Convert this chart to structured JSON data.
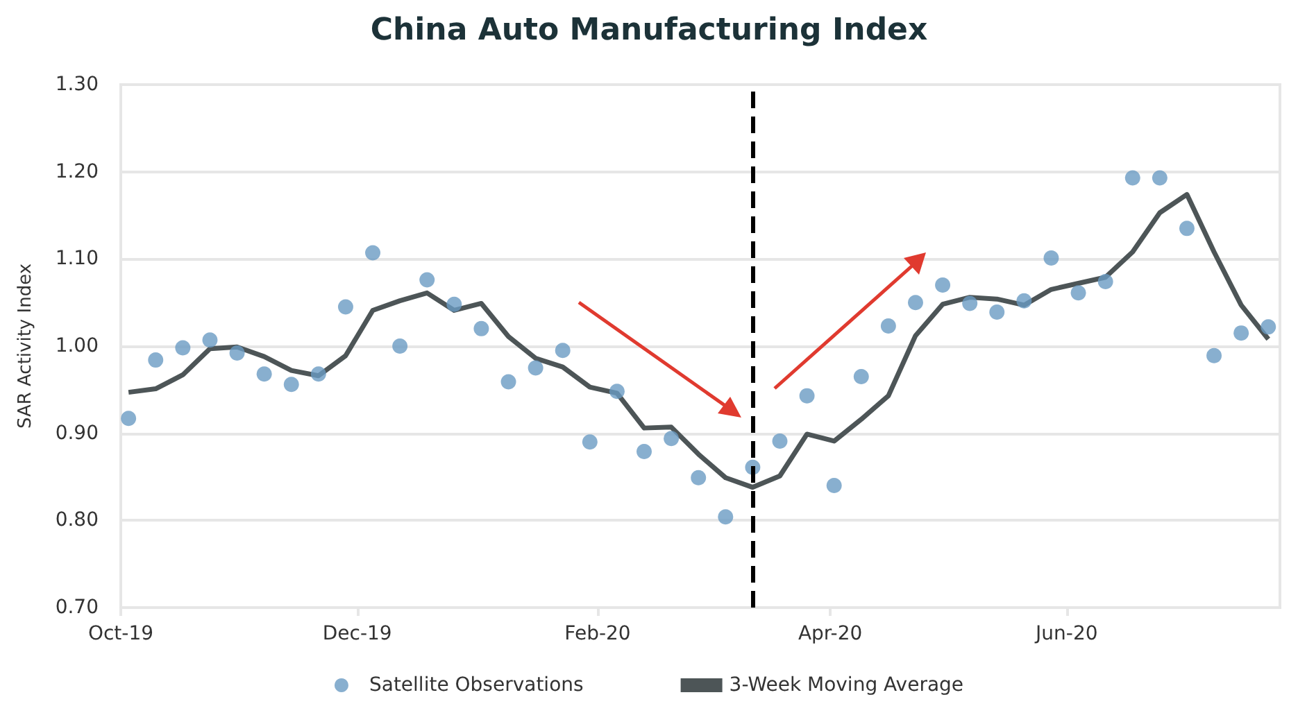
{
  "chart_data": {
    "type": "scatter",
    "title": "China Auto Manufacturing Index",
    "ylabel": "SAR Activity Index",
    "x": [
      "2019-10-03",
      "2019-10-10",
      "2019-10-17",
      "2019-10-24",
      "2019-10-31",
      "2019-11-07",
      "2019-11-14",
      "2019-11-21",
      "2019-11-28",
      "2019-12-05",
      "2019-12-12",
      "2019-12-19",
      "2019-12-26",
      "2020-01-02",
      "2020-01-09",
      "2020-01-16",
      "2020-01-23",
      "2020-01-30",
      "2020-02-06",
      "2020-02-13",
      "2020-02-20",
      "2020-02-27",
      "2020-03-05",
      "2020-03-12",
      "2020-03-19",
      "2020-03-26",
      "2020-04-02",
      "2020-04-09",
      "2020-04-16",
      "2020-04-23",
      "2020-04-30",
      "2020-05-07",
      "2020-05-14",
      "2020-05-21",
      "2020-05-28",
      "2020-06-04",
      "2020-06-11",
      "2020-06-18",
      "2020-06-25",
      "2020-07-02",
      "2020-07-09",
      "2020-07-16",
      "2020-07-23"
    ],
    "series": [
      {
        "name": "Satellite Observations",
        "color": "#6a9bc3",
        "marker": "circle",
        "values": [
          0.917,
          0.984,
          0.998,
          1.007,
          0.992,
          0.968,
          0.956,
          0.968,
          1.045,
          1.107,
          1.0,
          1.076,
          1.048,
          1.02,
          0.959,
          0.975,
          0.995,
          0.89,
          0.948,
          0.879,
          0.894,
          0.849,
          0.804,
          0.861,
          0.891,
          0.943,
          0.84,
          0.965,
          1.023,
          1.05,
          1.07,
          1.049,
          1.039,
          1.052,
          1.101,
          1.061,
          1.074,
          1.193,
          1.193,
          1.135,
          0.989,
          1.015,
          1.022
        ]
      },
      {
        "name": "3-Week Moving Average",
        "type": "line",
        "color": "#4d5557",
        "marker": "none",
        "line_style": "solid",
        "values": [
          0.947,
          0.951,
          0.967,
          0.997,
          0.999,
          0.988,
          0.972,
          0.966,
          0.989,
          1.041,
          1.052,
          1.061,
          1.041,
          1.049,
          1.011,
          0.986,
          0.976,
          0.953,
          0.946,
          0.906,
          0.907,
          0.876,
          0.849,
          0.838,
          0.851,
          0.899,
          0.891,
          0.916,
          0.943,
          1.012,
          1.048,
          1.056,
          1.054,
          1.047,
          1.065,
          1.072,
          1.079,
          1.108,
          1.153,
          1.174,
          1.108,
          1.047,
          1.008
        ]
      }
    ],
    "xlim": [
      "2019-10-01",
      "2020-07-26"
    ],
    "xticks": [
      {
        "value": "2019-10-01",
        "label": "Oct-19"
      },
      {
        "value": "2019-12-01",
        "label": "Dec-19"
      },
      {
        "value": "2020-02-01",
        "label": "Feb-20"
      },
      {
        "value": "2020-04-01",
        "label": "Apr-20"
      },
      {
        "value": "2020-06-01",
        "label": "Jun-20"
      }
    ],
    "ylim": [
      0.7,
      1.3
    ],
    "yticks": [
      {
        "value": 0.7,
        "label": "0.70"
      },
      {
        "value": 0.8,
        "label": "0.80"
      },
      {
        "value": 0.9,
        "label": "0.90"
      },
      {
        "value": 1.0,
        "label": "1.00"
      },
      {
        "value": 1.1,
        "label": "1.10"
      },
      {
        "value": 1.2,
        "label": "1.20"
      },
      {
        "value": 1.3,
        "label": "1.30"
      }
    ],
    "ref_lines": [
      {
        "axis": "x",
        "value": "2020-03-12",
        "color": "#000000",
        "line_style": "dashed"
      }
    ],
    "grid": "y",
    "legend": "bottom"
  }
}
